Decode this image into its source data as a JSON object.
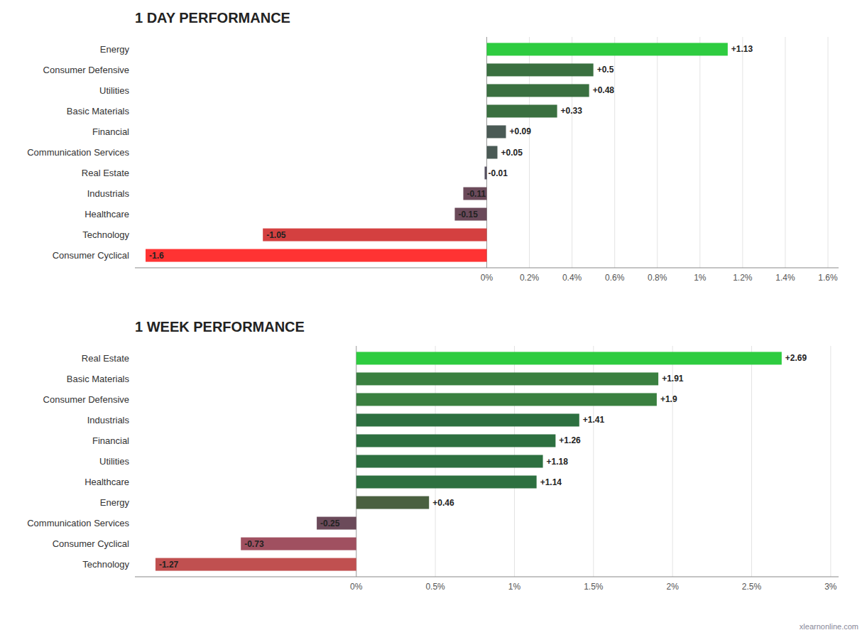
{
  "chart_data": [
    {
      "type": "bar",
      "orientation": "horizontal",
      "title": "1 DAY PERFORMANCE",
      "categories": [
        "Consumer Cyclical",
        "Technology",
        "Healthcare",
        "Industrials",
        "Real Estate",
        "Communication Services",
        "Financial",
        "Basic Materials",
        "Utilities",
        "Consumer Defensive",
        "Energy"
      ],
      "values": [
        -1.6,
        -1.05,
        -0.15,
        -0.11,
        -0.01,
        0.05,
        0.09,
        0.33,
        0.48,
        0.5,
        1.13
      ],
      "value_labels": [
        "-1.6",
        "-1.05",
        "-0.15",
        "-0.11",
        "-0.01",
        "+0.05",
        "+0.09",
        "+0.33",
        "+0.48",
        "+0.5",
        "+1.13"
      ],
      "colors": [
        "#ff3333",
        "#d44040",
        "#6b4a5a",
        "#6b4a5a",
        "#555060",
        "#4a5a55",
        "#4a5a55",
        "#3a7040",
        "#3a7040",
        "#3a7040",
        "#2ecc40"
      ],
      "xlim": [
        -1.65,
        1.65
      ],
      "xticks": [
        {
          "value": 0.0,
          "label": "0%"
        },
        {
          "value": 0.2,
          "label": "0.2%"
        },
        {
          "value": 0.4,
          "label": "0.4%"
        },
        {
          "value": 0.6,
          "label": "0.6%"
        },
        {
          "value": 0.8,
          "label": "0.8%"
        },
        {
          "value": 1.0,
          "label": "1%"
        },
        {
          "value": 1.2,
          "label": "1.2%"
        },
        {
          "value": 1.4,
          "label": "1.4%"
        },
        {
          "value": 1.6,
          "label": "1.6%"
        }
      ],
      "grid": true,
      "data_labels": true
    },
    {
      "type": "bar",
      "orientation": "horizontal",
      "title": "1 WEEK PERFORMANCE",
      "categories": [
        "Technology",
        "Consumer Cyclical",
        "Communication Services",
        "Energy",
        "Healthcare",
        "Utilities",
        "Financial",
        "Industrials",
        "Consumer Defensive",
        "Basic Materials",
        "Real Estate"
      ],
      "values": [
        -1.27,
        -0.73,
        -0.25,
        0.46,
        1.14,
        1.18,
        1.26,
        1.41,
        1.9,
        1.91,
        2.69
      ],
      "value_labels": [
        "-1.27",
        "-0.73",
        "-0.25",
        "+0.46",
        "+1.14",
        "+1.18",
        "+1.26",
        "+1.41",
        "+1.9",
        "+1.91",
        "+2.69"
      ],
      "colors": [
        "#c05050",
        "#a05060",
        "#6b4a5a",
        "#4a6040",
        "#2d7040",
        "#2d7040",
        "#2d7040",
        "#2d7040",
        "#3a8040",
        "#3a8040",
        "#2ecc40"
      ],
      "xlim": [
        -1.4,
        3.05
      ],
      "xticks": [
        {
          "value": 0.0,
          "label": "0%"
        },
        {
          "value": 0.5,
          "label": "0.5%"
        },
        {
          "value": 1.0,
          "label": "1%"
        },
        {
          "value": 1.5,
          "label": "1.5%"
        },
        {
          "value": 2.0,
          "label": "2%"
        },
        {
          "value": 2.5,
          "label": "2.5%"
        },
        {
          "value": 3.0,
          "label": "3%"
        }
      ],
      "grid": true,
      "data_labels": true,
      "annotations": [
        "xlearnonline.com"
      ]
    }
  ]
}
